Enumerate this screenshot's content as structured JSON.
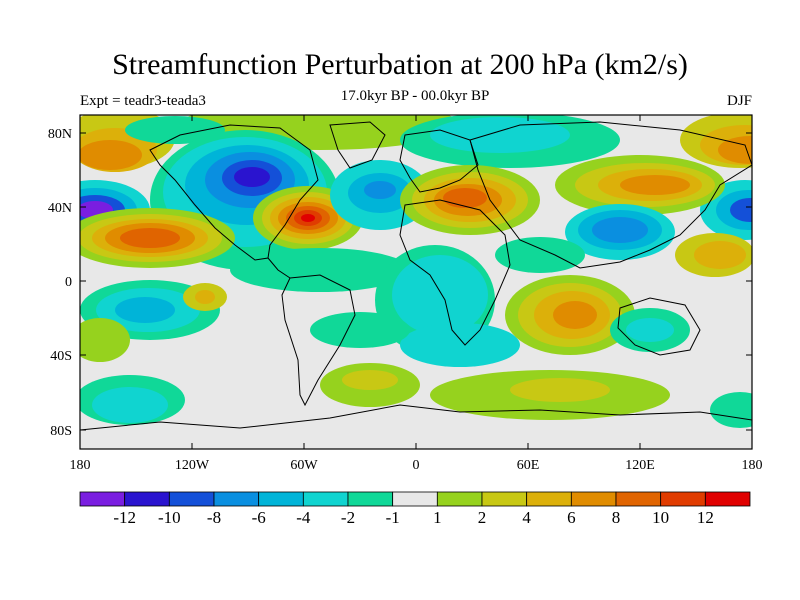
{
  "header": {
    "title": "Streamfunction Perturbation at 200 hPa (km2/s)",
    "subtitle": "17.0kyr BP - 00.0kyr BP",
    "left_label": "Expt = teadr3-teada3",
    "right_label": "DJF"
  },
  "axes": {
    "y_ticks": [
      "80N",
      "40N",
      "0",
      "40S",
      "80S"
    ],
    "x_ticks": [
      "180",
      "120W",
      "60W",
      "0",
      "60E",
      "120E",
      "180"
    ]
  },
  "colorbar": {
    "colors": [
      "#7a1ee0",
      "#2a14cf",
      "#1450d8",
      "#0a8fe0",
      "#00b4d8",
      "#10d4d0",
      "#10d898",
      "#e8e8e8",
      "#96d21e",
      "#c8c814",
      "#dcb00a",
      "#e08c00",
      "#e06400",
      "#e03c00",
      "#e00000"
    ],
    "labels": [
      "-12",
      "-10",
      "-8",
      "-6",
      "-4",
      "-2",
      "-1",
      "1",
      "2",
      "4",
      "6",
      "8",
      "10",
      "12"
    ]
  }
}
